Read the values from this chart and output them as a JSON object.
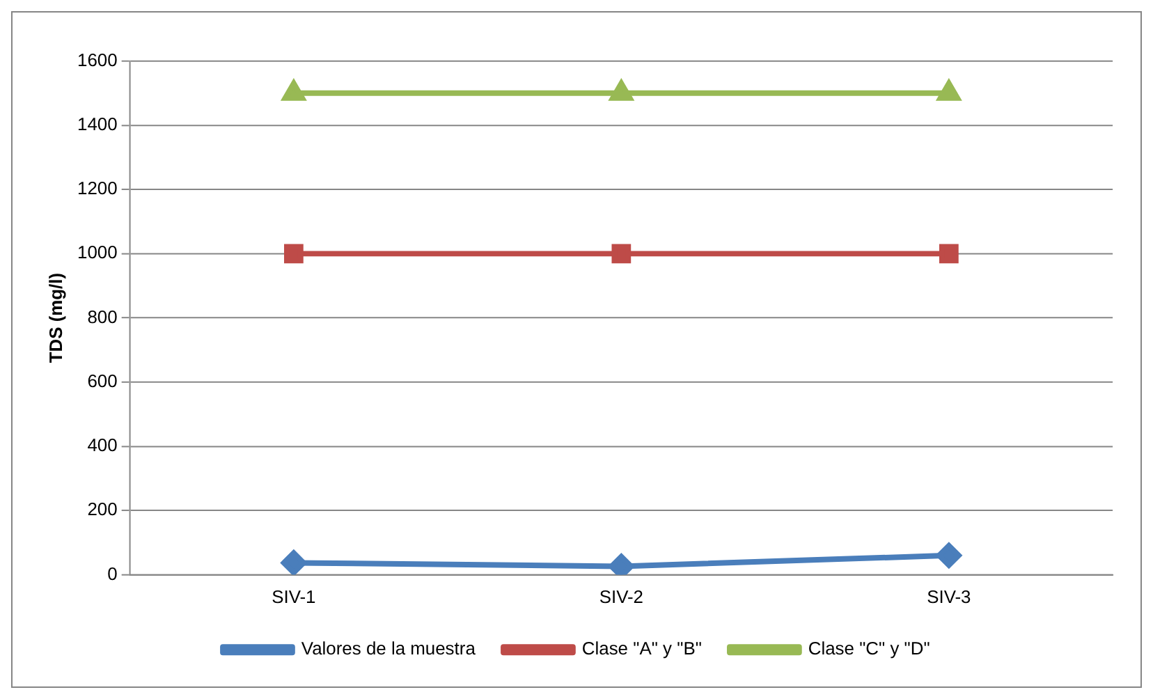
{
  "chart_data": {
    "type": "line",
    "ylabel": "TDS (mg/l)",
    "categories": [
      "SIV-1",
      "SIV-2",
      "SIV-3"
    ],
    "series": [
      {
        "name": "Valores de la muestra",
        "color": "#4a7ebb",
        "marker": "diamond",
        "values": [
          37,
          26,
          60
        ]
      },
      {
        "name": "Clase \"A\" y \"B\"",
        "color": "#be4b48",
        "marker": "square",
        "values": [
          1000,
          1000,
          1000
        ]
      },
      {
        "name": "Clase \"C\" y \"D\"",
        "color": "#98b954",
        "marker": "triangle",
        "values": [
          1500,
          1500,
          1500
        ]
      }
    ],
    "ylim": [
      0,
      1600
    ],
    "yticks": [
      0,
      200,
      400,
      600,
      800,
      1000,
      1200,
      1400,
      1600
    ],
    "grid": "y",
    "legend": "bottom"
  }
}
